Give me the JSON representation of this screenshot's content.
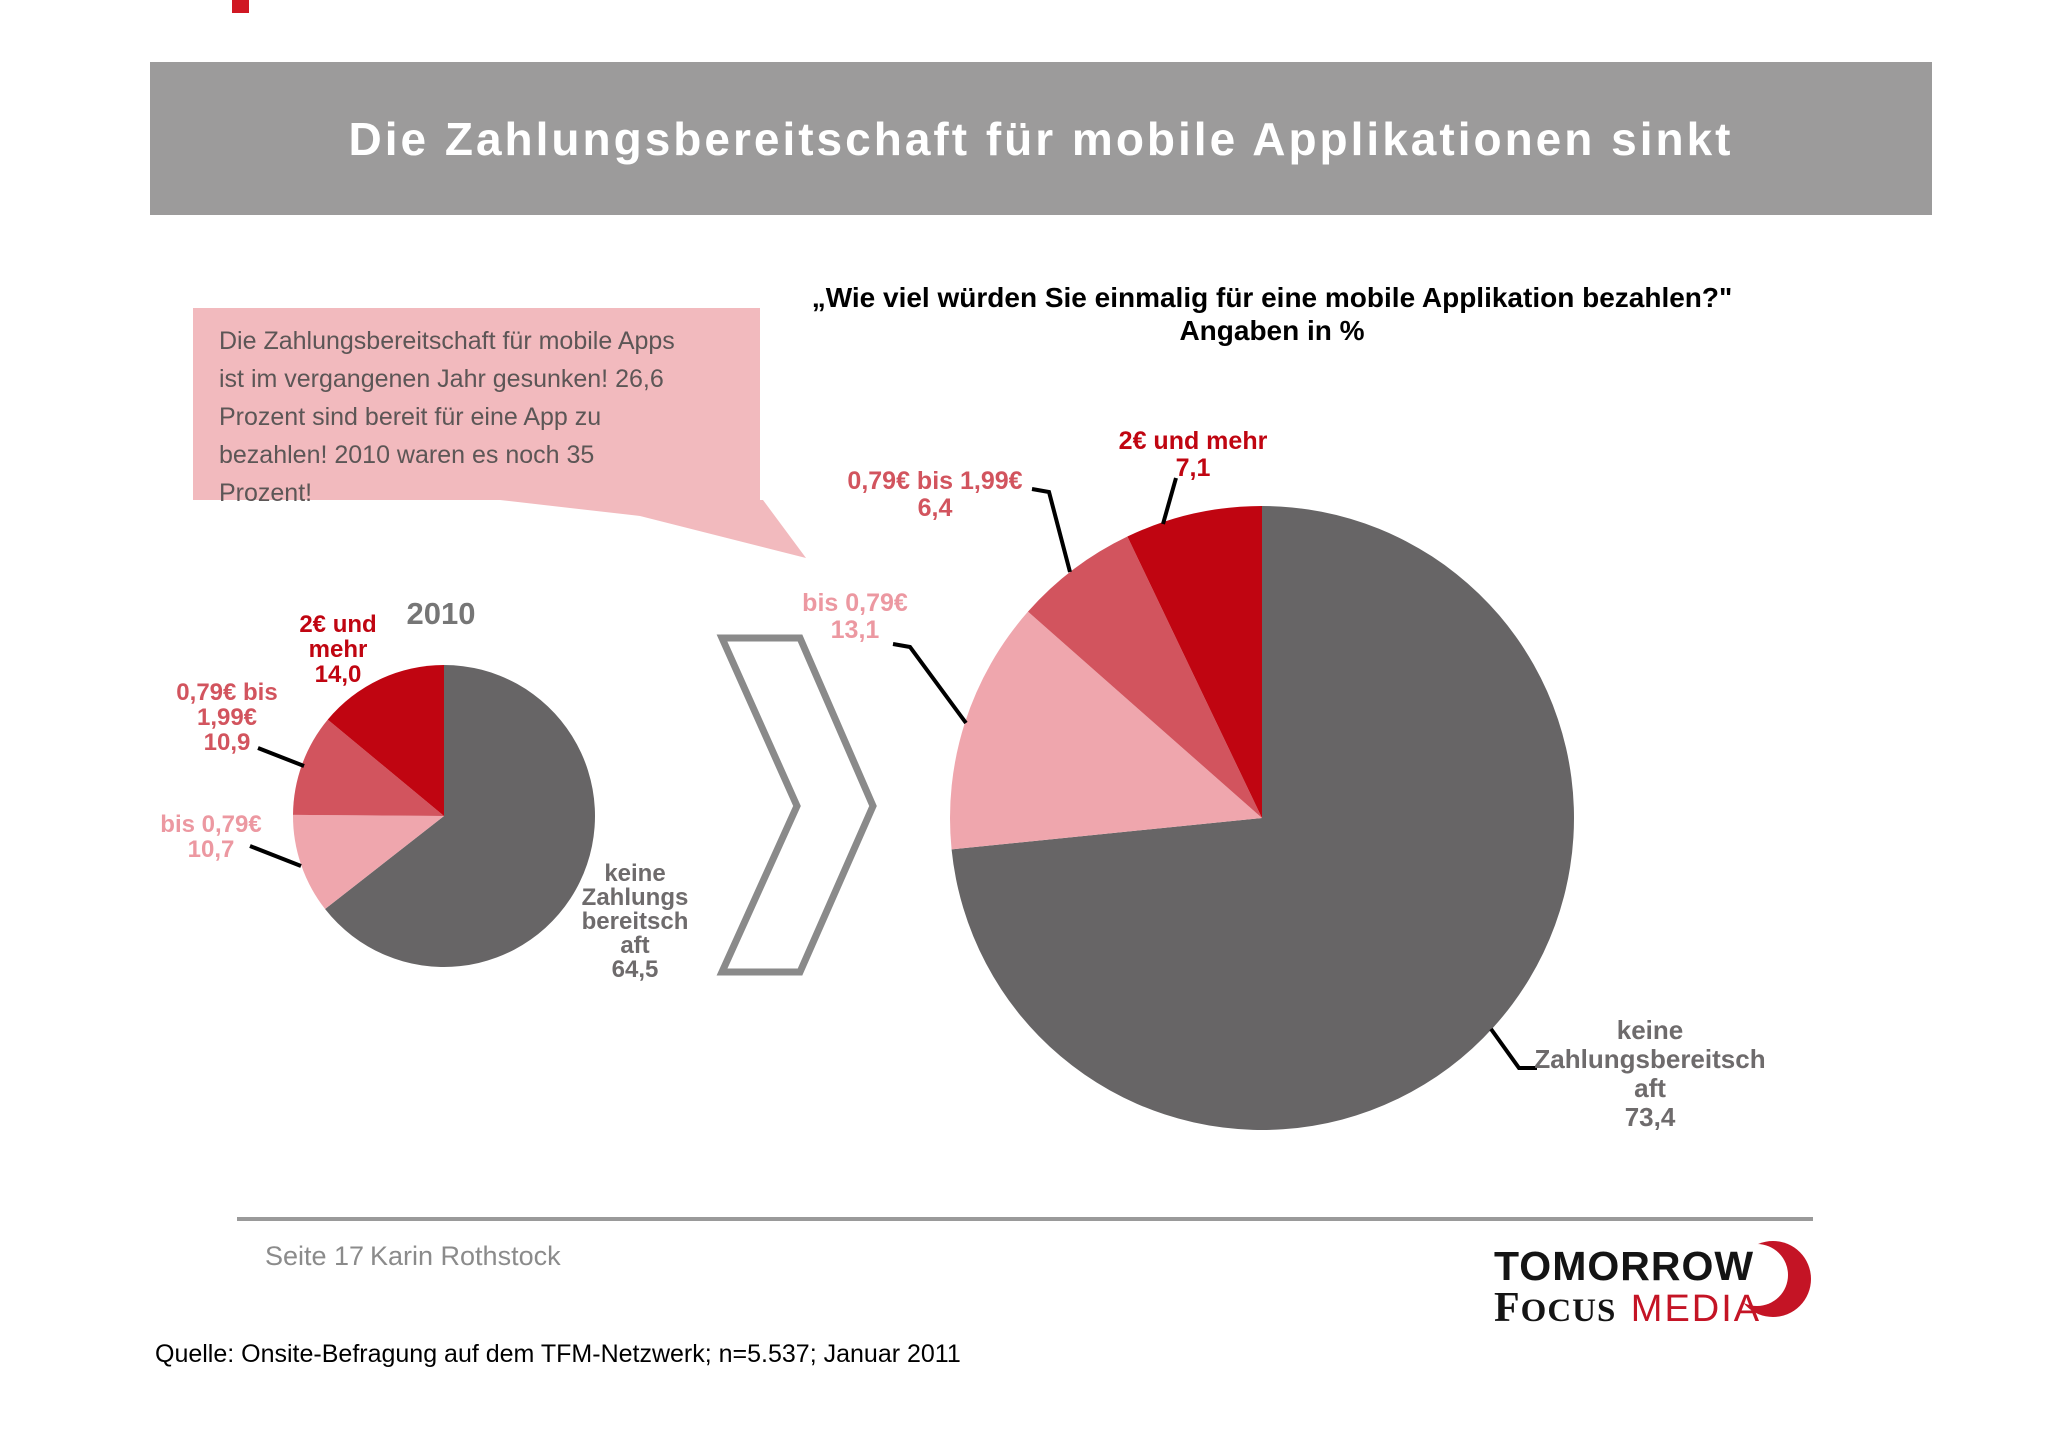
{
  "header": {
    "title": "Die Zahlungsbereitschaft für mobile Applikationen sinkt"
  },
  "callout": {
    "text": "Die Zahlungsbereitschaft für mobile Apps\nist im vergangenen Jahr gesunken! 26,6\nProzent sind bereit für eine App zu\nbezahlen! 2010 waren es noch 35\nProzent!"
  },
  "chart_title": {
    "line1": "„Wie viel würden Sie einmalig für eine mobile Applikation bezahlen?\"",
    "line2": "Angaben in %"
  },
  "chart_data": {
    "type": "pie",
    "title": "Wie viel würden Sie einmalig für eine mobile Applikation bezahlen?",
    "subtitle": "Angaben in %",
    "unit": "%",
    "direction": "clockwise",
    "start": "12-oclock",
    "pies": [
      {
        "year_label": "2010",
        "segments": [
          {
            "name": "keine Zahlungsbereitschaft",
            "value": 64.5,
            "color": "#676566"
          },
          {
            "name": "bis 0,79€",
            "value": 10.7,
            "color": "#efa6ad"
          },
          {
            "name": "0,79€ bis 1,99€",
            "value": 10.9,
            "color": "#d2545e"
          },
          {
            "name": "2€ und mehr",
            "value": 14.0,
            "color": "#c00511"
          }
        ],
        "labels": {
          "two_euro": "2€ und\nmehr\n14,0",
          "mid": "0,79€ bis\n1,99€\n10,9",
          "low": "bis 0,79€\n10,7",
          "none": "keine\nZahlungs\nbereitsch\naft\n64,5"
        }
      },
      {
        "segments": [
          {
            "name": "keine Zahlungsbereitschaft",
            "value": 73.4,
            "color": "#676566"
          },
          {
            "name": "bis 0,79€",
            "value": 13.1,
            "color": "#efa6ad"
          },
          {
            "name": "0,79€ bis 1,99€",
            "value": 6.4,
            "color": "#d2545e"
          },
          {
            "name": "2€ und mehr",
            "value": 7.1,
            "color": "#c00511"
          }
        ],
        "labels": {
          "two_euro": "2€ und mehr\n7,1",
          "mid": "0,79€ bis 1,99€\n6,4",
          "low": "bis 0,79€\n13,1",
          "none": "keine\nZahlungsbereitsch\naft\n73,4"
        }
      }
    ]
  },
  "footer": {
    "page_label": "Seite 17",
    "author": "Karin Rothstock",
    "source": "Quelle: Onsite-Befragung auf dem TFM-Netzwerk; n=5.537; Januar 2011"
  },
  "logo": {
    "tomorrow": "TOMORROW",
    "focus": "FOCUS",
    "media": "MEDIA"
  },
  "colors": {
    "dark_red": "#c00511",
    "mid_red": "#d2545e",
    "light_pink": "#efa6ad",
    "slice_gray": "#676566",
    "header_bar": "#9c9b9b",
    "callout_bg": "#f2babe",
    "logo_red": "#c41425"
  }
}
